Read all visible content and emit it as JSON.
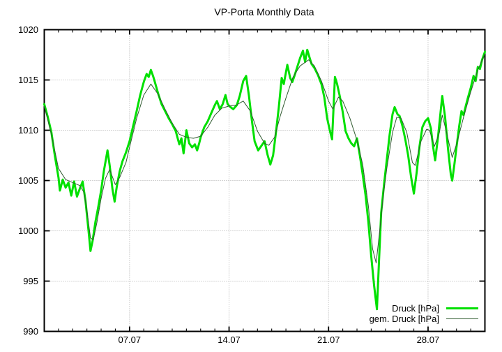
{
  "chart_data": {
    "type": "line",
    "title": "VP-Porta Monthly Data",
    "x_axis": {
      "tick_labels": [
        "07.07",
        "14.07",
        "21.07",
        "28.07"
      ],
      "tick_days": [
        6,
        13,
        20,
        27
      ],
      "range_days": [
        0,
        31
      ],
      "minor_tick_interval_days": 1
    },
    "y_axis": {
      "tick_values": [
        990,
        995,
        1000,
        1005,
        1010,
        1015,
        1020
      ],
      "range": [
        990,
        1020
      ],
      "unit": "hPa"
    },
    "grid": {
      "show": true,
      "style": "dotted",
      "color": "#a8a8a8"
    },
    "legend": {
      "position": "bottom-right-inside"
    },
    "border_color": "#000000",
    "series": [
      {
        "name": "Druck [hPa]",
        "color": "#00e000",
        "line_width": 3,
        "points": [
          [
            0,
            1012.6
          ],
          [
            0.25,
            1011.3
          ],
          [
            0.5,
            1009.8
          ],
          [
            0.75,
            1007.4
          ],
          [
            1,
            1005.3
          ],
          [
            1.1,
            1004
          ],
          [
            1.3,
            1005.1
          ],
          [
            1.5,
            1004.3
          ],
          [
            1.7,
            1004.8
          ],
          [
            1.9,
            1003.5
          ],
          [
            2.1,
            1004.9
          ],
          [
            2.3,
            1003.4
          ],
          [
            2.5,
            1004.2
          ],
          [
            2.7,
            1004.9
          ],
          [
            2.9,
            1003
          ],
          [
            3.1,
            1000.2
          ],
          [
            3.25,
            998
          ],
          [
            3.4,
            999
          ],
          [
            3.6,
            1000.9
          ],
          [
            3.8,
            1002.4
          ],
          [
            4,
            1004
          ],
          [
            4.2,
            1006
          ],
          [
            4.45,
            1008
          ],
          [
            4.6,
            1006.5
          ],
          [
            4.8,
            1004.1
          ],
          [
            4.95,
            1002.9
          ],
          [
            5.1,
            1004.4
          ],
          [
            5.3,
            1005.9
          ],
          [
            5.5,
            1006.9
          ],
          [
            5.75,
            1007.8
          ],
          [
            6,
            1008.9
          ],
          [
            6.25,
            1010.4
          ],
          [
            6.5,
            1011.9
          ],
          [
            6.75,
            1013.5
          ],
          [
            7,
            1014.8
          ],
          [
            7.2,
            1015.6
          ],
          [
            7.35,
            1015.3
          ],
          [
            7.5,
            1016
          ],
          [
            7.65,
            1015.4
          ],
          [
            7.8,
            1014.7
          ],
          [
            8,
            1013.7
          ],
          [
            8.25,
            1012.6
          ],
          [
            8.5,
            1011.9
          ],
          [
            8.75,
            1011.2
          ],
          [
            9,
            1010.6
          ],
          [
            9.25,
            1009.9
          ],
          [
            9.5,
            1008.6
          ],
          [
            9.65,
            1009.2
          ],
          [
            9.8,
            1007.7
          ],
          [
            10,
            1010
          ],
          [
            10.2,
            1008.7
          ],
          [
            10.4,
            1008.3
          ],
          [
            10.6,
            1008.6
          ],
          [
            10.75,
            1008
          ],
          [
            10.9,
            1008.7
          ],
          [
            11,
            1009.3
          ],
          [
            11.25,
            1010.3
          ],
          [
            11.5,
            1010.9
          ],
          [
            11.75,
            1011.7
          ],
          [
            12,
            1012.5
          ],
          [
            12.15,
            1012.9
          ],
          [
            12.35,
            1012.1
          ],
          [
            12.55,
            1012.6
          ],
          [
            12.75,
            1013.5
          ],
          [
            12.9,
            1012.6
          ],
          [
            13.1,
            1012.3
          ],
          [
            13.3,
            1012.1
          ],
          [
            13.55,
            1012.5
          ],
          [
            13.75,
            1013.4
          ],
          [
            14,
            1014.9
          ],
          [
            14.2,
            1015.4
          ],
          [
            14.4,
            1013.4
          ],
          [
            14.6,
            1011
          ],
          [
            14.8,
            1008.9
          ],
          [
            15.05,
            1008
          ],
          [
            15.25,
            1008.4
          ],
          [
            15.5,
            1008.9
          ],
          [
            15.7,
            1007.6
          ],
          [
            15.9,
            1006.6
          ],
          [
            16.1,
            1007.5
          ],
          [
            16.3,
            1009.8
          ],
          [
            16.5,
            1012.3
          ],
          [
            16.7,
            1015.2
          ],
          [
            16.85,
            1014.6
          ],
          [
            17.1,
            1016.5
          ],
          [
            17.3,
            1015.2
          ],
          [
            17.45,
            1014.8
          ],
          [
            17.6,
            1015.4
          ],
          [
            17.8,
            1016.3
          ],
          [
            18,
            1017.2
          ],
          [
            18.2,
            1017.9
          ],
          [
            18.35,
            1016.8
          ],
          [
            18.5,
            1018
          ],
          [
            18.65,
            1017.3
          ],
          [
            18.8,
            1016.6
          ],
          [
            19,
            1016.2
          ],
          [
            19.25,
            1015.5
          ],
          [
            19.5,
            1014.6
          ],
          [
            19.7,
            1013.3
          ],
          [
            19.9,
            1011.2
          ],
          [
            20.1,
            1009.9
          ],
          [
            20.25,
            1009.1
          ],
          [
            20.45,
            1015.3
          ],
          [
            20.6,
            1014.6
          ],
          [
            20.8,
            1013.3
          ],
          [
            21,
            1011.8
          ],
          [
            21.2,
            1009.9
          ],
          [
            21.4,
            1009.2
          ],
          [
            21.6,
            1008.7
          ],
          [
            21.8,
            1008.4
          ],
          [
            22,
            1009.2
          ],
          [
            22.2,
            1007.5
          ],
          [
            22.4,
            1005.6
          ],
          [
            22.6,
            1003.6
          ],
          [
            22.8,
            1000.9
          ],
          [
            23,
            997.5
          ],
          [
            23.2,
            994.6
          ],
          [
            23.4,
            992.2
          ],
          [
            23.55,
            997
          ],
          [
            23.7,
            1001.8
          ],
          [
            23.9,
            1004.6
          ],
          [
            24.1,
            1007.1
          ],
          [
            24.3,
            1009.6
          ],
          [
            24.5,
            1011.6
          ],
          [
            24.65,
            1012.3
          ],
          [
            24.85,
            1011.6
          ],
          [
            25,
            1011.4
          ],
          [
            25.2,
            1010.4
          ],
          [
            25.4,
            1009.1
          ],
          [
            25.6,
            1007.5
          ],
          [
            25.8,
            1005.4
          ],
          [
            26,
            1003.7
          ],
          [
            26.2,
            1005.8
          ],
          [
            26.4,
            1008.4
          ],
          [
            26.6,
            1010.3
          ],
          [
            26.8,
            1010.9
          ],
          [
            27,
            1011.2
          ],
          [
            27.2,
            1010.2
          ],
          [
            27.35,
            1008.4
          ],
          [
            27.5,
            1007
          ],
          [
            27.7,
            1009.3
          ],
          [
            27.85,
            1011.4
          ],
          [
            28,
            1013.4
          ],
          [
            28.2,
            1011.3
          ],
          [
            28.4,
            1008.2
          ],
          [
            28.6,
            1005.6
          ],
          [
            28.7,
            1005
          ],
          [
            28.85,
            1006.6
          ],
          [
            29,
            1008.3
          ],
          [
            29.2,
            1010.5
          ],
          [
            29.35,
            1011.9
          ],
          [
            29.5,
            1011.5
          ],
          [
            29.65,
            1012.4
          ],
          [
            29.8,
            1013.2
          ],
          [
            30,
            1014.2
          ],
          [
            30.2,
            1015.4
          ],
          [
            30.35,
            1014.9
          ],
          [
            30.5,
            1016.3
          ],
          [
            30.65,
            1016.1
          ],
          [
            30.8,
            1017
          ],
          [
            31,
            1017.8
          ]
        ]
      },
      {
        "name": "gem. Druck [hPa]",
        "color": "#2f5a2f",
        "line_width": 1,
        "points": [
          [
            0,
            1012.4
          ],
          [
            0.5,
            1009.6
          ],
          [
            1,
            1006.2
          ],
          [
            1.5,
            1005.1
          ],
          [
            2,
            1004.8
          ],
          [
            2.5,
            1004.5
          ],
          [
            2.8,
            1003.8
          ],
          [
            3,
            1002
          ],
          [
            3.25,
            999.3
          ],
          [
            3.45,
            999.1
          ],
          [
            3.7,
            1000.8
          ],
          [
            4,
            1003.2
          ],
          [
            4.3,
            1005.2
          ],
          [
            4.6,
            1006.1
          ],
          [
            5,
            1004.6
          ],
          [
            5.3,
            1005.3
          ],
          [
            5.75,
            1006.8
          ],
          [
            6,
            1008.3
          ],
          [
            6.5,
            1011.2
          ],
          [
            7,
            1013.5
          ],
          [
            7.5,
            1014.6
          ],
          [
            8,
            1013.6
          ],
          [
            8.5,
            1012.1
          ],
          [
            9,
            1010.7
          ],
          [
            9.5,
            1009.6
          ],
          [
            10,
            1009.3
          ],
          [
            10.5,
            1009.2
          ],
          [
            11,
            1009.4
          ],
          [
            11.5,
            1010.3
          ],
          [
            12,
            1011.5
          ],
          [
            12.5,
            1012.2
          ],
          [
            13,
            1012.4
          ],
          [
            13.5,
            1012.5
          ],
          [
            14,
            1012.9
          ],
          [
            14.5,
            1011.9
          ],
          [
            15,
            1009.9
          ],
          [
            15.5,
            1008.7
          ],
          [
            15.8,
            1008.5
          ],
          [
            16.2,
            1009.3
          ],
          [
            16.6,
            1011.4
          ],
          [
            17,
            1013.2
          ],
          [
            17.5,
            1015.3
          ],
          [
            18,
            1016.4
          ],
          [
            18.6,
            1017
          ],
          [
            19,
            1016.4
          ],
          [
            19.5,
            1014.9
          ],
          [
            20,
            1012.9
          ],
          [
            20.3,
            1012.1
          ],
          [
            20.7,
            1013.3
          ],
          [
            21,
            1012.9
          ],
          [
            21.5,
            1011.2
          ],
          [
            22,
            1009
          ],
          [
            22.4,
            1006.6
          ],
          [
            22.8,
            1002.5
          ],
          [
            23.1,
            998.2
          ],
          [
            23.35,
            996.8
          ],
          [
            23.6,
            1000
          ],
          [
            23.85,
            1003.5
          ],
          [
            24.1,
            1006.2
          ],
          [
            24.5,
            1009.8
          ],
          [
            24.8,
            1011.3
          ],
          [
            25.1,
            1011.2
          ],
          [
            25.5,
            1009.8
          ],
          [
            25.9,
            1006.8
          ],
          [
            26.1,
            1006.5
          ],
          [
            26.5,
            1008.9
          ],
          [
            26.9,
            1010.1
          ],
          [
            27.1,
            1010
          ],
          [
            27.45,
            1008.4
          ],
          [
            27.8,
            1009.8
          ],
          [
            28,
            1011.5
          ],
          [
            28.3,
            1009.8
          ],
          [
            28.7,
            1007.3
          ],
          [
            29,
            1008.6
          ],
          [
            29.5,
            1011.3
          ],
          [
            30,
            1013.8
          ],
          [
            30.5,
            1016
          ],
          [
            31,
            1017.6
          ]
        ]
      }
    ]
  }
}
